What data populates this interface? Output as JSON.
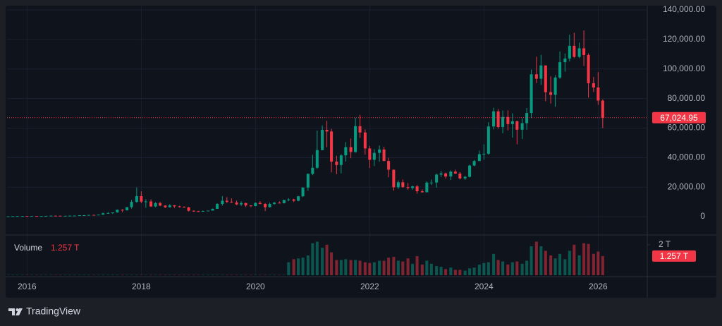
{
  "chart_data": {
    "type": "candlestick",
    "brand": "TradingView",
    "volume_title": "Volume",
    "up_color": "#089981",
    "down_color": "#f23645",
    "xlim": [
      2015.65,
      2026.86
    ],
    "xticks": [
      2016,
      2018,
      2020,
      2022,
      2024,
      2026
    ],
    "ylim": [
      -12400,
      142900
    ],
    "yticks": [
      0,
      {
        "value": 20000,
        "label": "20,000.00"
      },
      {
        "value": 40000,
        "label": "40,000.00"
      },
      {
        "value": 60000,
        "label": "60,000.00"
      },
      {
        "value": 80000,
        "label": "80,000.00"
      },
      {
        "value": 100000,
        "label": "100,000.00"
      },
      {
        "value": 120000,
        "label": "120,000.00"
      },
      {
        "value": 140000,
        "label": "140,000.00"
      }
    ],
    "grid": true,
    "price_line": {
      "value": 67024.95,
      "label": "67,024.95"
    },
    "volume_ylim": [
      0,
      2.5
    ],
    "volume_yticks": [
      {
        "value": 2,
        "label": "2 T"
      }
    ],
    "volume_last": {
      "value": 1.257,
      "label": "1.257 T"
    },
    "x": [
      2015.67,
      2015.75,
      2015.83,
      2015.92,
      2016,
      2016.08,
      2016.17,
      2016.25,
      2016.33,
      2016.42,
      2016.5,
      2016.58,
      2016.67,
      2016.75,
      2016.83,
      2016.92,
      2017,
      2017.08,
      2017.17,
      2017.25,
      2017.33,
      2017.42,
      2017.5,
      2017.58,
      2017.67,
      2017.75,
      2017.83,
      2017.92,
      2018,
      2018.08,
      2018.17,
      2018.25,
      2018.33,
      2018.42,
      2018.5,
      2018.58,
      2018.67,
      2018.75,
      2018.83,
      2018.92,
      2019,
      2019.08,
      2019.17,
      2019.25,
      2019.33,
      2019.42,
      2019.5,
      2019.58,
      2019.67,
      2019.75,
      2019.83,
      2019.92,
      2020,
      2020.08,
      2020.17,
      2020.25,
      2020.33,
      2020.42,
      2020.5,
      2020.58,
      2020.67,
      2020.75,
      2020.83,
      2020.92,
      2021,
      2021.08,
      2021.17,
      2021.25,
      2021.33,
      2021.42,
      2021.5,
      2021.58,
      2021.67,
      2021.75,
      2021.83,
      2021.92,
      2022,
      2022.08,
      2022.17,
      2022.25,
      2022.33,
      2022.42,
      2022.5,
      2022.58,
      2022.67,
      2022.75,
      2022.83,
      2022.92,
      2023,
      2023.08,
      2023.17,
      2023.25,
      2023.33,
      2023.42,
      2023.5,
      2023.58,
      2023.67,
      2023.75,
      2023.83,
      2023.92,
      2024,
      2024.08,
      2024.17,
      2024.25,
      2024.33,
      2024.42,
      2024.5,
      2024.58,
      2024.67,
      2024.75,
      2024.83,
      2024.92,
      2025,
      2025.08,
      2025.17,
      2025.25,
      2025.33,
      2025.42,
      2025.5,
      2025.58,
      2025.67,
      2025.75,
      2025.83,
      2025.92,
      2026,
      2026.08
    ],
    "open": [
      230,
      236,
      314,
      378,
      430,
      370,
      437,
      416,
      448,
      530,
      670,
      624,
      573,
      608,
      700,
      740,
      960,
      970,
      1190,
      1070,
      1350,
      2300,
      2480,
      2870,
      4700,
      4340,
      6450,
      10000,
      13900,
      10200,
      10300,
      6900,
      9200,
      7500,
      6400,
      7700,
      7000,
      6600,
      6300,
      4000,
      3700,
      3450,
      3850,
      4100,
      5300,
      8600,
      10800,
      10100,
      9600,
      8300,
      9200,
      7600,
      7200,
      9350,
      8600,
      6400,
      8600,
      9450,
      9150,
      11350,
      11650,
      10780,
      13800,
      19700,
      29000,
      33100,
      45100,
      58800,
      57700,
      37300,
      35000,
      41500,
      47100,
      43800,
      61300,
      57000,
      46200,
      38500,
      43200,
      45500,
      37700,
      31800,
      19900,
      23300,
      20000,
      19400,
      20500,
      17200,
      16500,
      23100,
      23100,
      28500,
      29300,
      27200,
      30500,
      29200,
      25900,
      27000,
      34600,
      37700,
      42300,
      42600,
      61100,
      71300,
      60700,
      67500,
      62700,
      64600,
      58900,
      63300,
      70200,
      96400,
      93400,
      102400,
      84300,
      82500,
      94200,
      104600,
      107100,
      115700,
      108200,
      114000,
      109500,
      90400,
      87500,
      78600
    ],
    "high": [
      240,
      330,
      500,
      470,
      460,
      440,
      440,
      470,
      550,
      780,
      700,
      630,
      630,
      740,
      760,
      980,
      1150,
      1200,
      1300,
      1350,
      2760,
      3000,
      2900,
      4750,
      5000,
      6470,
      11400,
      19800,
      17200,
      11800,
      11700,
      9800,
      10000,
      7800,
      8500,
      7800,
      7400,
      7000,
      6600,
      4300,
      4100,
      4200,
      4100,
      5600,
      9100,
      13900,
      13200,
      12300,
      10900,
      10400,
      9500,
      7800,
      9600,
      10500,
      9200,
      9500,
      10100,
      10400,
      11500,
      12500,
      12100,
      14100,
      19900,
      29300,
      41900,
      58300,
      61800,
      64900,
      59500,
      41300,
      42300,
      50500,
      52900,
      67000,
      69000,
      59100,
      47900,
      45800,
      48200,
      47400,
      39900,
      31900,
      24600,
      25200,
      22800,
      21000,
      21500,
      18400,
      23900,
      25200,
      29200,
      31000,
      29800,
      31400,
      31800,
      30200,
      27500,
      35200,
      38400,
      44700,
      49000,
      64000,
      73800,
      72800,
      71900,
      72000,
      70000,
      65000,
      66500,
      73600,
      99600,
      108300,
      109600,
      102500,
      95000,
      95800,
      111900,
      110500,
      123200,
      124500,
      117900,
      126200,
      110600,
      94600,
      97900,
      79400
    ],
    "low": [
      225,
      236,
      300,
      350,
      360,
      370,
      400,
      412,
      440,
      530,
      600,
      540,
      570,
      600,
      690,
      740,
      750,
      920,
      890,
      1060,
      1350,
      2100,
      1830,
      2700,
      2970,
      4100,
      5500,
      9400,
      9100,
      6000,
      6600,
      6400,
      7100,
      5800,
      6100,
      5900,
      6100,
      6200,
      3500,
      3200,
      3400,
      3400,
      3700,
      4100,
      5300,
      7500,
      9100,
      9400,
      7800,
      7300,
      6500,
      6400,
      6900,
      8400,
      3800,
      6200,
      8100,
      8900,
      8900,
      10500,
      9900,
      10400,
      13200,
      17600,
      28100,
      32300,
      45000,
      47000,
      30000,
      28800,
      29300,
      37300,
      39600,
      43300,
      53300,
      42000,
      33000,
      34300,
      37200,
      37600,
      26700,
      17600,
      18800,
      19600,
      18200,
      18200,
      15500,
      16300,
      16500,
      21400,
      19600,
      26900,
      25800,
      24800,
      28900,
      25200,
      24900,
      26600,
      34100,
      37600,
      38500,
      41900,
      59100,
      59600,
      56500,
      58400,
      53500,
      49000,
      52600,
      58900,
      66800,
      90500,
      89200,
      78200,
      76600,
      74400,
      93300,
      98200,
      105100,
      107400,
      107300,
      102000,
      80600,
      84400,
      75700,
      60000
    ],
    "close": [
      236,
      314,
      378,
      430,
      370,
      437,
      416,
      448,
      530,
      670,
      624,
      573,
      608,
      700,
      740,
      960,
      970,
      1190,
      1070,
      1350,
      2300,
      2480,
      2870,
      4700,
      4340,
      6450,
      10000,
      13900,
      10200,
      10300,
      6900,
      9200,
      7500,
      6400,
      7700,
      7000,
      6600,
      6300,
      4000,
      3700,
      3450,
      3850,
      4100,
      5300,
      8600,
      10800,
      10100,
      9600,
      8300,
      9200,
      7600,
      7200,
      9350,
      8600,
      6400,
      8600,
      9450,
      9150,
      11350,
      11650,
      10780,
      13800,
      19700,
      29000,
      33100,
      45100,
      58800,
      57700,
      37300,
      35000,
      41500,
      47100,
      43800,
      61300,
      57000,
      46200,
      38500,
      43200,
      45500,
      37700,
      31800,
      19900,
      23300,
      20000,
      19400,
      20500,
      17200,
      16500,
      23100,
      23100,
      28500,
      29300,
      27200,
      30500,
      29200,
      25900,
      27000,
      34600,
      37700,
      42300,
      42600,
      61100,
      71300,
      60700,
      67500,
      62700,
      64600,
      58900,
      63300,
      70200,
      96400,
      93400,
      102400,
      84300,
      82500,
      94200,
      104600,
      107100,
      115700,
      108200,
      114000,
      109500,
      90400,
      87500,
      78600,
      67024.95
    ],
    "volume": [
      0.02,
      0.02,
      0.02,
      0.02,
      0.02,
      0.02,
      0.02,
      0.02,
      0.02,
      0.02,
      0.02,
      0.02,
      0.02,
      0.02,
      0.02,
      0.02,
      0.02,
      0.02,
      0.02,
      0.02,
      0.02,
      0.02,
      0.02,
      0.02,
      0.02,
      0.02,
      0.02,
      0.02,
      0.02,
      0.02,
      0.02,
      0.02,
      0.02,
      0.02,
      0.02,
      0.02,
      0.02,
      0.02,
      0.02,
      0.02,
      0.02,
      0.02,
      0.02,
      0.02,
      0.02,
      0.02,
      0.02,
      0.02,
      0.02,
      0.02,
      0.02,
      0.02,
      0.02,
      0.02,
      0.02,
      0.02,
      0.02,
      0.02,
      0.02,
      0.85,
      1.05,
      1.1,
      1.15,
      1.3,
      2.1,
      2.2,
      1.8,
      2.0,
      1.5,
      1.0,
      1.0,
      1.05,
      1.0,
      1.0,
      0.95,
      0.85,
      0.8,
      0.85,
      0.95,
      0.95,
      1.15,
      1.2,
      0.95,
      0.9,
      1.1,
      0.75,
      1.25,
      0.7,
      0.95,
      0.75,
      0.6,
      0.55,
      0.4,
      0.5,
      0.35,
      0.35,
      0.3,
      0.45,
      0.5,
      0.7,
      0.8,
      0.85,
      1.4,
      1.0,
      0.9,
      0.7,
      0.85,
      0.9,
      0.75,
      0.95,
      1.9,
      2.2,
      1.9,
      1.6,
      1.3,
      1.1,
      1.4,
      1.05,
      1.6,
      2.0,
      1.3,
      2.1,
      2.05,
      1.4,
      1.55,
      1.257
    ]
  }
}
